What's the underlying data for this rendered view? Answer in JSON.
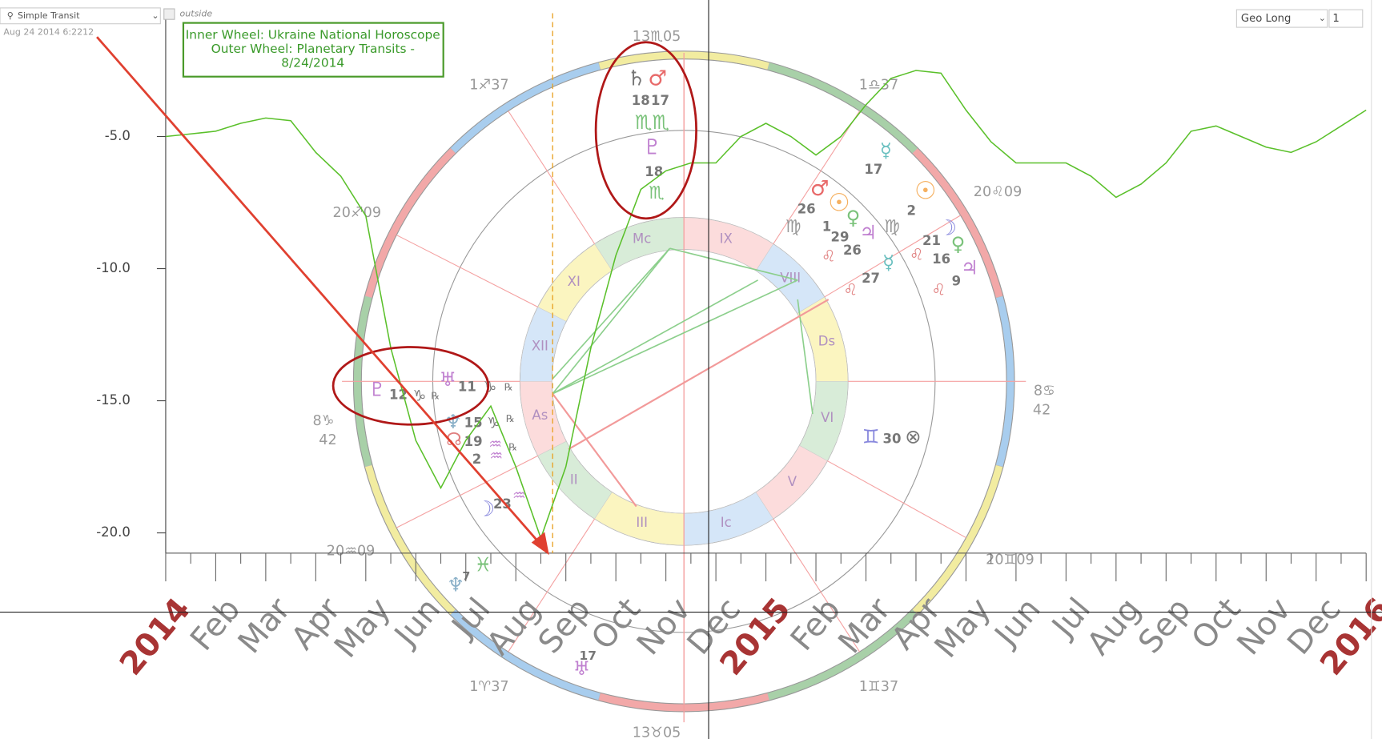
{
  "toolbar": {
    "mode": "Simple Transit",
    "datetime": "Aug 24 2014 6:2212",
    "layer": "outside",
    "coordinate": "Geo Long",
    "step": "1"
  },
  "info_box": {
    "lines": [
      "Inner Wheel: Ukraine National Horoscope",
      "Outer Wheel: Planetary Transits -",
      "8/24/2014"
    ]
  },
  "chart_data": {
    "type": "line",
    "categories": [
      "2014",
      null,
      "Feb",
      null,
      "Mar",
      null,
      "Apr",
      null,
      "May",
      null,
      "Jun",
      null,
      "Jul",
      null,
      "Aug",
      null,
      "Sep",
      null,
      "Oct",
      null,
      "Nov",
      null,
      "Dec",
      null,
      "2015",
      null,
      "Feb",
      null,
      "Mar",
      null,
      "Apr",
      null,
      "May",
      null,
      "Jun",
      null,
      "Jul",
      null,
      "Aug",
      null,
      "Sep",
      null,
      "Oct",
      null,
      "Nov",
      null,
      "Dec",
      null,
      "2016"
    ],
    "series": [
      {
        "color": "#5ac02a",
        "values": [
          -5.0,
          -4.9,
          -4.8,
          -4.5,
          -4.3,
          -4.4,
          -5.6,
          -6.5,
          -8.0,
          -13.0,
          -16.5,
          -18.3,
          -16.5,
          -15.2,
          -17.5,
          -20.2,
          -17.5,
          -13.0,
          -9.5,
          -7.0,
          -6.3,
          -6.0,
          -6.0,
          -5.0,
          -4.5,
          -5.0,
          -5.7,
          -5.0,
          -3.8,
          -2.8,
          -2.5,
          -2.6,
          -4.0,
          -5.2,
          -6.0,
          -6.0,
          -6.0,
          -6.5,
          -7.3,
          -6.8,
          -6.0,
          -4.8,
          -4.6,
          -5.0,
          -5.4,
          -5.6,
          -5.2,
          -4.6,
          -4.0
        ]
      }
    ],
    "ylim": [
      -20.75,
      -0.25
    ],
    "yticks": [
      {
        "value": -5,
        "label": "-5.0"
      },
      {
        "value": -10,
        "label": "-10.0"
      },
      {
        "value": -15,
        "label": "-15.0"
      },
      {
        "value": -20,
        "label": "-20.0"
      }
    ]
  },
  "wheel": {
    "houses": [
      "Ds",
      "VIII",
      "IX",
      "Mc",
      "XI",
      "XII",
      "As",
      "II",
      "III",
      "Ic",
      "V",
      "VI"
    ],
    "degree_labels": [
      "13♏05",
      "1♐37",
      "1♎37",
      "20♐09",
      "20♌09",
      "8♑",
      "42",
      "8♋",
      "42",
      "20♒09",
      "20♊09",
      "1♈37",
      "1♊37",
      "13♉05"
    ],
    "glyphs": [
      "♄",
      "♂",
      "18",
      "17",
      "♏♏",
      "♇",
      "18",
      "♏",
      "♇",
      "12",
      "♑",
      "℞",
      "♅",
      "11",
      "♑",
      "℞",
      "♆",
      "15",
      "♑",
      "℞",
      "☊",
      "19",
      "♒",
      "℞",
      "2",
      "♒",
      "☽",
      "23",
      "♒",
      "♓",
      "♆",
      "7",
      "♅",
      "17",
      "♂",
      "26",
      "☉",
      "♀",
      "1",
      "29",
      "♃",
      "26",
      "♍",
      "♍",
      "☿",
      "17",
      "☉",
      "2",
      "☽",
      "21",
      "♀",
      "16",
      "♃",
      "9",
      "☿",
      "27",
      "♌",
      "♌",
      "♌",
      "♌",
      "♊",
      "30",
      "⊗"
    ]
  }
}
